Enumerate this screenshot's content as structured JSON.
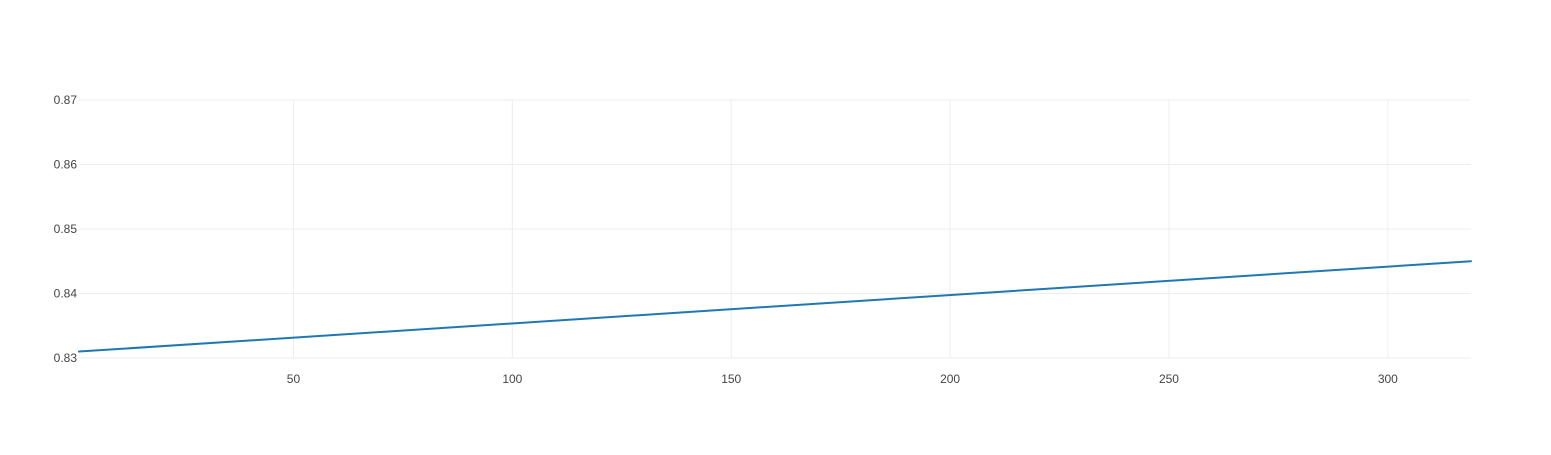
{
  "chart_data": {
    "type": "line",
    "title": "",
    "xlabel": "",
    "ylabel": "",
    "xlim": [
      1,
      319
    ],
    "ylim": [
      0.83,
      0.87
    ],
    "x_ticks": [
      50,
      100,
      150,
      200,
      250,
      300
    ],
    "y_ticks": [
      0.83,
      0.84,
      0.85,
      0.86,
      0.87
    ],
    "x_tick_labels": [
      "50",
      "100",
      "150",
      "200",
      "250",
      "300"
    ],
    "y_tick_labels": [
      "0.83",
      "0.84",
      "0.85",
      "0.86",
      "0.87"
    ],
    "grid": true,
    "legend": "none",
    "series": [
      {
        "color": "#1f77b4",
        "x": [
          1,
          319
        ],
        "y": [
          0.831,
          0.845
        ]
      }
    ]
  },
  "colors": {
    "grid": "#eeeeee",
    "tick_text": "#444444",
    "line": "#1f77b4"
  }
}
